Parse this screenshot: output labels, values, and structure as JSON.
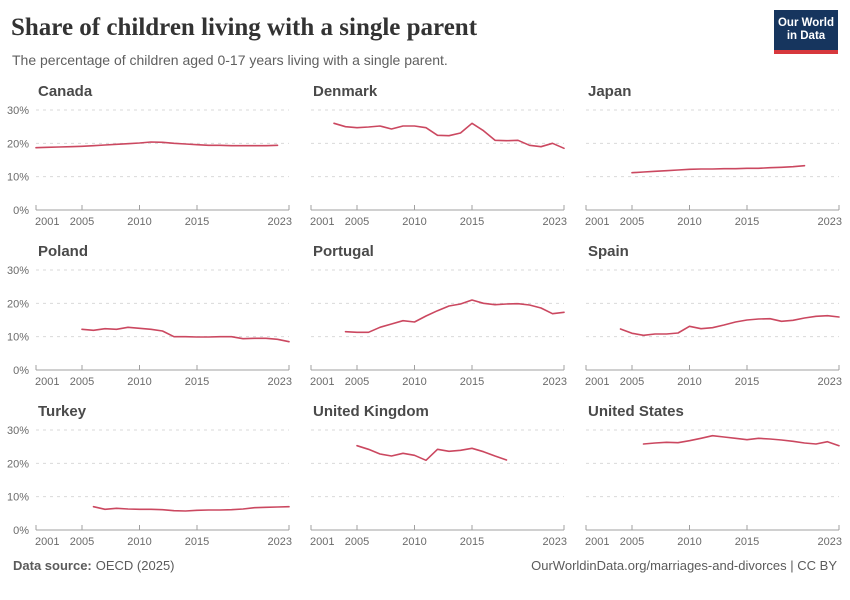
{
  "header": {
    "title": "Share of children living with a single parent",
    "subtitle": "The percentage of children aged 0-17 years living with a single parent.",
    "logo": {
      "line1": "Our World",
      "line2": "in Data"
    }
  },
  "footer": {
    "source_label": "Data source:",
    "source_value": "OECD (2025)",
    "attribution": "OurWorldinData.org/marriages-and-divorces | CC BY"
  },
  "colors": {
    "line": "#cb4860",
    "grid": "#d9d9d9",
    "axis": "#a0a0a0",
    "tick_text": "#6b6b6b",
    "logo_navy": "#16355e",
    "logo_red": "#d7383d"
  },
  "chart_data": {
    "type": "line",
    "title": "Share of children living with a single parent",
    "xlabel": "",
    "ylabel": "",
    "ylim": [
      0,
      30
    ],
    "x_range": [
      2001,
      2023
    ],
    "grid": true,
    "legend": "none",
    "y_tick_values": [
      0,
      10,
      20,
      30
    ],
    "y_tick_labels": [
      "0%",
      "10%",
      "20%",
      "30%"
    ],
    "x_tick_years": [
      2001,
      2005,
      2010,
      2015,
      2023
    ],
    "x_tick_labels": [
      "2001",
      "2005",
      "2010",
      "2015",
      "2023"
    ],
    "charts": [
      {
        "name": "Canada",
        "points": [
          [
            2001,
            18.7
          ],
          [
            2002,
            18.8
          ],
          [
            2003,
            18.9
          ],
          [
            2004,
            19.0
          ],
          [
            2005,
            19.1
          ],
          [
            2006,
            19.3
          ],
          [
            2007,
            19.5
          ],
          [
            2008,
            19.7
          ],
          [
            2009,
            19.9
          ],
          [
            2010,
            20.1
          ],
          [
            2011,
            20.4
          ],
          [
            2012,
            20.3
          ],
          [
            2013,
            20.0
          ],
          [
            2014,
            19.8
          ],
          [
            2015,
            19.6
          ],
          [
            2016,
            19.4
          ],
          [
            2017,
            19.4
          ],
          [
            2018,
            19.3
          ],
          [
            2019,
            19.3
          ],
          [
            2020,
            19.3
          ],
          [
            2021,
            19.3
          ],
          [
            2022,
            19.4
          ]
        ]
      },
      {
        "name": "Denmark",
        "points": [
          [
            2003,
            26.0
          ],
          [
            2004,
            25.0
          ],
          [
            2005,
            24.7
          ],
          [
            2006,
            24.9
          ],
          [
            2007,
            25.2
          ],
          [
            2008,
            24.3
          ],
          [
            2009,
            25.2
          ],
          [
            2010,
            25.2
          ],
          [
            2011,
            24.7
          ],
          [
            2012,
            22.4
          ],
          [
            2013,
            22.3
          ],
          [
            2014,
            23.1
          ],
          [
            2015,
            26.0
          ],
          [
            2016,
            23.8
          ],
          [
            2017,
            20.9
          ],
          [
            2018,
            20.8
          ],
          [
            2019,
            20.9
          ],
          [
            2020,
            19.4
          ],
          [
            2021,
            19.0
          ],
          [
            2022,
            20.0
          ],
          [
            2023,
            18.5
          ]
        ]
      },
      {
        "name": "Japan",
        "points": [
          [
            2005,
            11.2
          ],
          [
            2006,
            11.4
          ],
          [
            2007,
            11.6
          ],
          [
            2008,
            11.8
          ],
          [
            2009,
            12.0
          ],
          [
            2010,
            12.2
          ],
          [
            2011,
            12.3
          ],
          [
            2012,
            12.3
          ],
          [
            2013,
            12.4
          ],
          [
            2014,
            12.4
          ],
          [
            2015,
            12.5
          ],
          [
            2016,
            12.5
          ],
          [
            2017,
            12.7
          ],
          [
            2018,
            12.8
          ],
          [
            2019,
            13.0
          ],
          [
            2020,
            13.3
          ]
        ]
      },
      {
        "name": "Poland",
        "points": [
          [
            2005,
            12.2
          ],
          [
            2006,
            11.9
          ],
          [
            2007,
            12.4
          ],
          [
            2008,
            12.2
          ],
          [
            2009,
            12.8
          ],
          [
            2010,
            12.5
          ],
          [
            2011,
            12.2
          ],
          [
            2012,
            11.7
          ],
          [
            2013,
            10.0
          ],
          [
            2014,
            10.0
          ],
          [
            2015,
            9.9
          ],
          [
            2016,
            9.9
          ],
          [
            2017,
            10.0
          ],
          [
            2018,
            10.0
          ],
          [
            2019,
            9.4
          ],
          [
            2020,
            9.5
          ],
          [
            2021,
            9.5
          ],
          [
            2022,
            9.2
          ],
          [
            2023,
            8.5
          ]
        ]
      },
      {
        "name": "Portugal",
        "points": [
          [
            2004,
            11.5
          ],
          [
            2005,
            11.3
          ],
          [
            2006,
            11.3
          ],
          [
            2007,
            12.8
          ],
          [
            2008,
            13.8
          ],
          [
            2009,
            14.8
          ],
          [
            2010,
            14.4
          ],
          [
            2011,
            16.2
          ],
          [
            2012,
            17.8
          ],
          [
            2013,
            19.2
          ],
          [
            2014,
            19.8
          ],
          [
            2015,
            21.0
          ],
          [
            2016,
            20.0
          ],
          [
            2017,
            19.6
          ],
          [
            2018,
            19.8
          ],
          [
            2019,
            19.9
          ],
          [
            2020,
            19.5
          ],
          [
            2021,
            18.6
          ],
          [
            2022,
            16.9
          ],
          [
            2023,
            17.3
          ]
        ]
      },
      {
        "name": "Spain",
        "points": [
          [
            2004,
            12.3
          ],
          [
            2005,
            11.0
          ],
          [
            2006,
            10.4
          ],
          [
            2007,
            10.8
          ],
          [
            2008,
            10.8
          ],
          [
            2009,
            11.1
          ],
          [
            2010,
            13.1
          ],
          [
            2011,
            12.4
          ],
          [
            2012,
            12.7
          ],
          [
            2013,
            13.5
          ],
          [
            2014,
            14.4
          ],
          [
            2015,
            15.0
          ],
          [
            2016,
            15.3
          ],
          [
            2017,
            15.4
          ],
          [
            2018,
            14.6
          ],
          [
            2019,
            14.9
          ],
          [
            2020,
            15.6
          ],
          [
            2021,
            16.1
          ],
          [
            2022,
            16.3
          ],
          [
            2023,
            15.9
          ]
        ]
      },
      {
        "name": "Turkey",
        "points": [
          [
            2006,
            7.0
          ],
          [
            2007,
            6.2
          ],
          [
            2008,
            6.5
          ],
          [
            2009,
            6.3
          ],
          [
            2010,
            6.2
          ],
          [
            2011,
            6.2
          ],
          [
            2012,
            6.1
          ],
          [
            2013,
            5.8
          ],
          [
            2014,
            5.7
          ],
          [
            2015,
            5.9
          ],
          [
            2016,
            6.0
          ],
          [
            2017,
            6.0
          ],
          [
            2018,
            6.1
          ],
          [
            2019,
            6.3
          ],
          [
            2020,
            6.7
          ],
          [
            2021,
            6.8
          ],
          [
            2022,
            6.9
          ],
          [
            2023,
            7.0
          ]
        ]
      },
      {
        "name": "United Kingdom",
        "points": [
          [
            2005,
            25.3
          ],
          [
            2006,
            24.2
          ],
          [
            2007,
            22.8
          ],
          [
            2008,
            22.2
          ],
          [
            2009,
            23.0
          ],
          [
            2010,
            22.4
          ],
          [
            2011,
            20.9
          ],
          [
            2012,
            24.2
          ],
          [
            2013,
            23.6
          ],
          [
            2014,
            23.9
          ],
          [
            2015,
            24.5
          ],
          [
            2016,
            23.5
          ],
          [
            2017,
            22.2
          ],
          [
            2018,
            21.0
          ]
        ]
      },
      {
        "name": "United States",
        "points": [
          [
            2006,
            25.8
          ],
          [
            2007,
            26.1
          ],
          [
            2008,
            26.3
          ],
          [
            2009,
            26.2
          ],
          [
            2010,
            26.8
          ],
          [
            2011,
            27.5
          ],
          [
            2012,
            28.3
          ],
          [
            2013,
            27.9
          ],
          [
            2014,
            27.5
          ],
          [
            2015,
            27.1
          ],
          [
            2016,
            27.5
          ],
          [
            2017,
            27.3
          ],
          [
            2018,
            27.0
          ],
          [
            2019,
            26.6
          ],
          [
            2020,
            26.1
          ],
          [
            2021,
            25.8
          ],
          [
            2022,
            26.5
          ],
          [
            2023,
            25.3
          ]
        ]
      }
    ]
  }
}
